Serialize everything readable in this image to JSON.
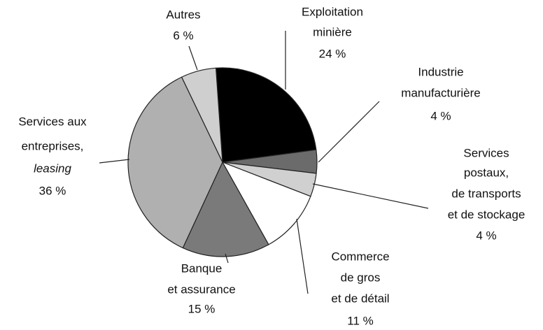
{
  "chart_data": {
    "type": "pie",
    "categories": [
      [
        "Exploitation",
        "minière"
      ],
      [
        "Industrie",
        "manufacturière"
      ],
      [
        "Services",
        "postaux,",
        "de transports",
        "et de stockage"
      ],
      [
        "Commerce",
        "de gros",
        "et de détail"
      ],
      [
        "Banque",
        "et assurance"
      ],
      [
        "Services aux",
        "entreprises,",
        "leasing"
      ],
      [
        "Autres"
      ]
    ],
    "values": [
      24,
      4,
      4,
      11,
      15,
      36,
      6
    ],
    "value_labels": [
      "24 %",
      "4 %",
      "4 %",
      "11 %",
      "15 %",
      "36 %",
      "6 %"
    ],
    "colors": [
      "#000000",
      "#6b6b6b",
      "#d0d0d0",
      "#ffffff",
      "#7a7a7a",
      "#b0b0b0",
      "#cfcfcf"
    ]
  }
}
